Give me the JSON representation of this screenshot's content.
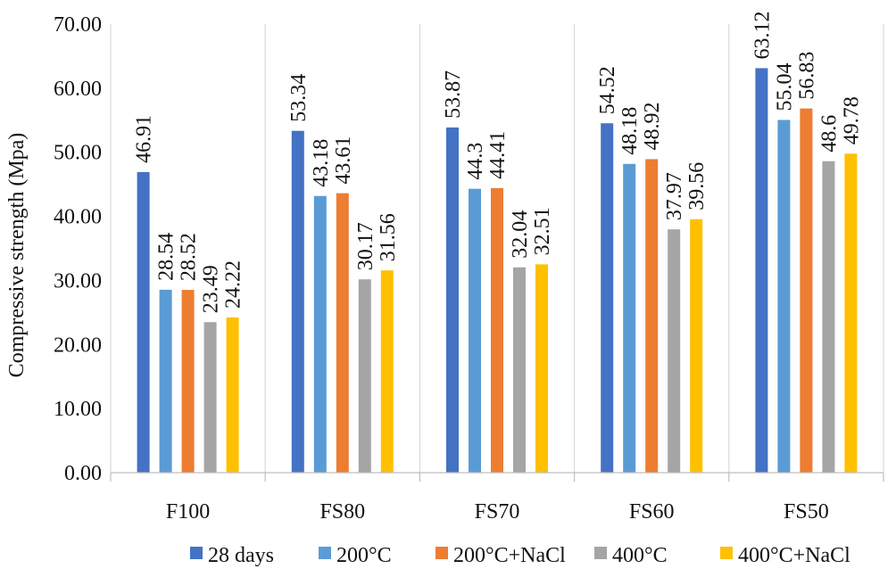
{
  "chart_data": {
    "type": "bar",
    "ylabel": "Compressive strength (Mpa)",
    "xlabel": "",
    "ylim": [
      0,
      70
    ],
    "yticks": [
      "0.00",
      "10.00",
      "20.00",
      "30.00",
      "40.00",
      "50.00",
      "60.00",
      "70.00"
    ],
    "categories": [
      "F100",
      "FS80",
      "FS70",
      "FS60",
      "FS50"
    ],
    "series": [
      {
        "name": "28 days",
        "color": "#4472C4",
        "values": [
          46.91,
          53.34,
          53.87,
          54.52,
          63.12
        ],
        "labels": [
          "46.91",
          "53.34",
          "53.87",
          "54.52",
          "63.12"
        ]
      },
      {
        "name": "200°C",
        "color": "#5B9BD5",
        "values": [
          28.54,
          43.18,
          44.3,
          48.18,
          55.04
        ],
        "labels": [
          "28.54",
          "43.18",
          "44.3",
          "48.18",
          "55.04"
        ]
      },
      {
        "name": "200°C+NaCl",
        "color": "#ED7D31",
        "values": [
          28.52,
          43.61,
          44.41,
          48.92,
          56.83
        ],
        "labels": [
          "28.52",
          "43.61",
          "44.41",
          "48.92",
          "56.83"
        ]
      },
      {
        "name": "400°C",
        "color": "#A5A5A5",
        "values": [
          23.49,
          30.17,
          32.04,
          37.97,
          48.6
        ],
        "labels": [
          "23.49",
          "30.17",
          "32.04",
          "37.97",
          "48.6"
        ]
      },
      {
        "name": "400°C+NaCl",
        "color": "#FFC000",
        "values": [
          24.22,
          31.56,
          32.51,
          39.56,
          49.78
        ],
        "labels": [
          "24.22",
          "31.56",
          "32.51",
          "39.56",
          "49.78"
        ]
      }
    ],
    "grid": "vertical-category-separators",
    "legend_position": "bottom"
  }
}
